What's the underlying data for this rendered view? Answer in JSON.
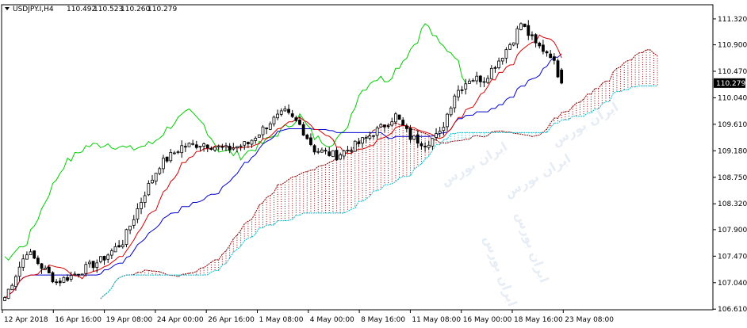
{
  "header": {
    "symbol": "USDJPY.I,H4",
    "open": "110.492",
    "high": "110.523",
    "low": "110.260",
    "close": "110.279"
  },
  "current_price_label": "110.279",
  "watermark": "ایران بورس",
  "colors": {
    "background": "#ffffff",
    "frame": "#000000",
    "candle": "#000000",
    "tenkan": "#d40000",
    "kijun": "#0000cc",
    "chikou": "#00cc00",
    "senkou_a": "#8b0000",
    "senkou_b": "#00c0d0",
    "price_box": "#000000"
  },
  "chart_data": {
    "type": "candlestick",
    "title": "USDJPY.I,H4",
    "indicator": "Ichimoku Kinko Hyo",
    "ylim": [
      106.6,
      111.55
    ],
    "y_ticks": [
      "111.320",
      "110.900",
      "110.470",
      "110.279",
      "110.040",
      "109.610",
      "109.180",
      "108.750",
      "108.320",
      "107.900",
      "107.470",
      "107.040",
      "106.610"
    ],
    "x_ticks": [
      "12 Apr 2018",
      "16 Apr 16:00",
      "19 Apr 08:00",
      "24 Apr 00:00",
      "26 Apr 16:00",
      "1 May 08:00",
      "4 May 00:00",
      "8 May 16:00",
      "11 May 08:00",
      "16 May 00:00",
      "18 May 16:00",
      "23 May 08:00"
    ],
    "price_keypoints": [
      [
        0,
        106.8
      ],
      [
        6,
        107.55
      ],
      [
        10,
        107.3
      ],
      [
        14,
        107.05
      ],
      [
        18,
        107.15
      ],
      [
        26,
        107.4
      ],
      [
        32,
        107.7
      ],
      [
        38,
        108.5
      ],
      [
        42,
        108.95
      ],
      [
        48,
        109.25
      ],
      [
        54,
        109.3
      ],
      [
        60,
        109.2
      ],
      [
        66,
        109.3
      ],
      [
        72,
        109.65
      ],
      [
        76,
        109.8
      ],
      [
        80,
        109.6
      ],
      [
        84,
        109.2
      ],
      [
        90,
        109.1
      ],
      [
        96,
        109.3
      ],
      [
        102,
        109.55
      ],
      [
        106,
        109.75
      ],
      [
        110,
        109.4
      ],
      [
        114,
        109.3
      ],
      [
        118,
        109.45
      ],
      [
        122,
        110.1
      ],
      [
        126,
        110.35
      ],
      [
        130,
        110.35
      ],
      [
        134,
        110.65
      ],
      [
        138,
        111.0
      ],
      [
        140,
        111.25
      ],
      [
        144,
        110.9
      ],
      [
        148,
        110.75
      ],
      [
        151,
        110.28
      ]
    ]
  }
}
